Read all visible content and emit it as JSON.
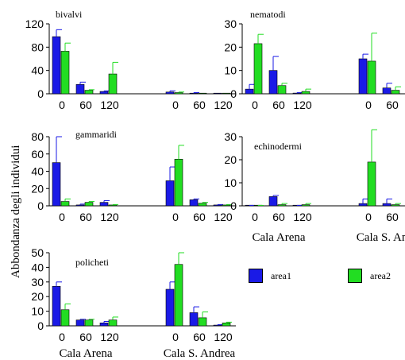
{
  "ylabel": "Abbondanza degli individui",
  "sites": [
    "Cala Arena",
    "Cala S. Andrea"
  ],
  "legend": [
    {
      "label": "area1",
      "color": "#1a1ae6"
    },
    {
      "label": "area2",
      "color": "#22dd22"
    }
  ],
  "colors": {
    "area1": "#1a1ae6",
    "area2": "#22dd22"
  },
  "chart_data": [
    {
      "type": "bar",
      "title": "bivalvi",
      "categories": [
        "0",
        "60",
        "120",
        "0",
        "60",
        "120"
      ],
      "ylim": [
        0,
        120
      ],
      "yticks": [
        0,
        40,
        80,
        120
      ],
      "series": [
        {
          "name": "area1",
          "values": [
            98,
            16,
            4,
            3,
            1,
            1
          ],
          "err": [
            12,
            4,
            1,
            2,
            1,
            0
          ]
        },
        {
          "name": "area2",
          "values": [
            73,
            6,
            34,
            2,
            1,
            1
          ],
          "err": [
            14,
            1,
            20,
            1,
            0,
            0
          ]
        }
      ]
    },
    {
      "type": "bar",
      "title": "nematodi",
      "categories": [
        "0",
        "60",
        "120",
        "0",
        "60",
        "120"
      ],
      "ylim": [
        0,
        30
      ],
      "yticks": [
        0,
        10,
        20,
        30
      ],
      "series": [
        {
          "name": "area1",
          "values": [
            2,
            10,
            0.3,
            15,
            2.5,
            0.3
          ],
          "err": [
            2,
            6,
            0.2,
            2,
            2,
            0.1
          ]
        },
        {
          "name": "area2",
          "values": [
            21.5,
            3.5,
            1,
            14,
            1.5,
            0.2
          ],
          "err": [
            4,
            1,
            1,
            12,
            1.5,
            0.1
          ]
        }
      ]
    },
    {
      "type": "bar",
      "title": "gammaridi",
      "categories": [
        "0",
        "60",
        "120",
        "0",
        "60",
        "120"
      ],
      "ylim": [
        0,
        80
      ],
      "yticks": [
        0,
        20,
        40,
        60,
        80
      ],
      "series": [
        {
          "name": "area1",
          "values": [
            50,
            1,
            4,
            29,
            7,
            1
          ],
          "err": [
            30,
            1,
            2,
            16,
            1,
            0.5
          ]
        },
        {
          "name": "area2",
          "values": [
            5,
            4,
            1,
            54,
            3,
            1
          ],
          "err": [
            3,
            1,
            0.5,
            16,
            1,
            0.5
          ]
        }
      ]
    },
    {
      "type": "bar",
      "title": "echinodermi",
      "categories": [
        "0",
        "60",
        "120",
        "0",
        "60",
        "120"
      ],
      "ylim": [
        0,
        30
      ],
      "yticks": [
        0,
        10,
        20,
        30
      ],
      "series": [
        {
          "name": "area1",
          "values": [
            0.1,
            4,
            0.1,
            1,
            1,
            0.3
          ],
          "err": [
            0.1,
            0.5,
            0.1,
            2,
            2,
            0.5
          ]
        },
        {
          "name": "area2",
          "values": [
            0.1,
            0.5,
            0.5,
            19,
            0.5,
            1
          ],
          "err": [
            0.1,
            0.5,
            0.5,
            14,
            0.5,
            1
          ]
        }
      ]
    },
    {
      "type": "bar",
      "title": "policheti",
      "categories": [
        "0",
        "60",
        "120",
        "0",
        "60",
        "120"
      ],
      "ylim": [
        0,
        50
      ],
      "yticks": [
        0,
        10,
        20,
        30,
        40,
        50
      ],
      "series": [
        {
          "name": "area1",
          "values": [
            27,
            4,
            2,
            25,
            9,
            0.5
          ],
          "err": [
            3,
            0.5,
            1,
            5,
            4,
            0.3
          ]
        },
        {
          "name": "area2",
          "values": [
            11,
            4,
            4,
            42,
            5.5,
            2
          ],
          "err": [
            4,
            0.5,
            2,
            8,
            4,
            0.5
          ]
        }
      ]
    }
  ]
}
